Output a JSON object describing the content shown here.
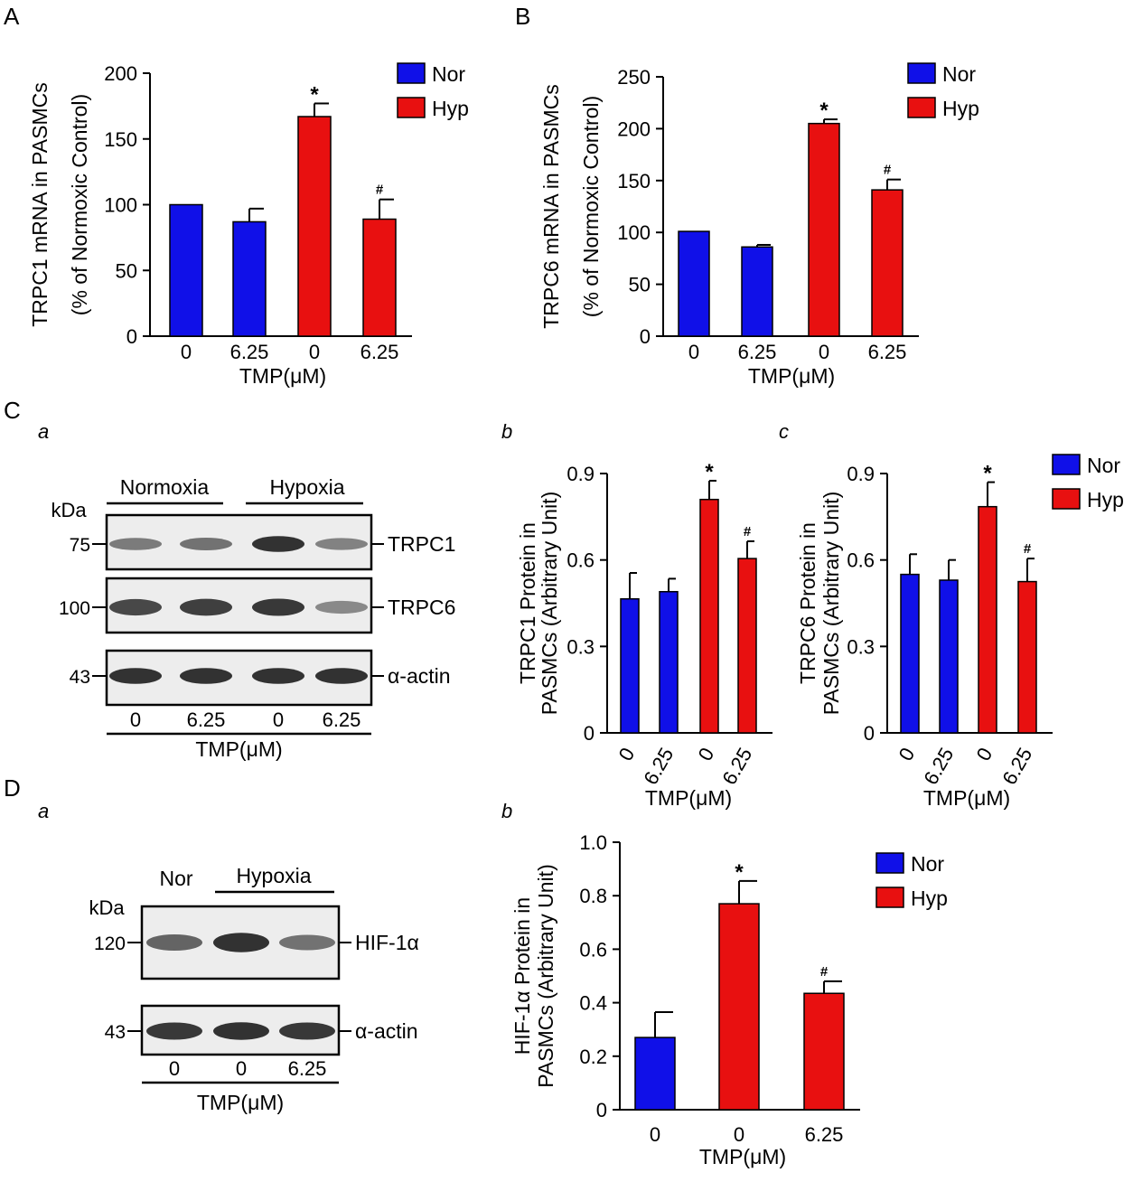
{
  "colors": {
    "nor": "#1010E8",
    "hyp": "#E81010",
    "axis": "#000000",
    "blot_bg": "#EDEDED",
    "band": "#2A2A2A"
  },
  "panel_labels": {
    "A": "A",
    "B": "B",
    "C": "C",
    "D": "D",
    "Ca": "a",
    "Cb": "b",
    "Cc": "c",
    "Da": "a",
    "Db": "b"
  },
  "legend": {
    "nor": "Nor",
    "hyp": "Hyp"
  },
  "blots": {
    "C": {
      "groups": [
        "Normoxia",
        "Hypoxia"
      ],
      "kda_label": "kDa",
      "markers": [
        "75",
        "100",
        "43"
      ],
      "proteins": [
        "TRPC1",
        "TRPC6",
        "α-actin"
      ],
      "lanes": [
        "0",
        "6.25",
        "0",
        "6.25"
      ],
      "xlabel": "TMP(μM)",
      "band_intensity": [
        [
          0.45,
          0.5,
          0.95,
          0.4
        ],
        [
          0.8,
          0.85,
          0.9,
          0.35
        ],
        [
          0.95,
          0.95,
          0.95,
          0.95
        ]
      ]
    },
    "D": {
      "groups": [
        "Nor",
        "Hypoxia"
      ],
      "kda_label": "kDa",
      "markers": [
        "120",
        "43"
      ],
      "proteins": [
        "HIF-1α",
        "α-actin"
      ],
      "lanes": [
        "0",
        "0",
        "6.25"
      ],
      "xlabel": "TMP(μM)",
      "band_intensity": [
        [
          0.6,
          0.95,
          0.5
        ],
        [
          0.9,
          0.95,
          0.9
        ]
      ]
    }
  },
  "chart_data": [
    {
      "id": "A",
      "type": "bar",
      "ylabel": [
        "TRPC1 mRNA in PASMCs",
        "(% of Normoxic Control)"
      ],
      "xlabel": "TMP(μM)",
      "categories": [
        "0",
        "6.25",
        "0",
        "6.25"
      ],
      "groups": [
        "Nor",
        "Nor",
        "Hyp",
        "Hyp"
      ],
      "values": [
        100,
        87,
        167,
        89
      ],
      "errors": [
        0,
        10,
        10,
        15
      ],
      "marks": [
        "",
        "",
        "*",
        "#"
      ],
      "ylim": [
        0,
        200
      ],
      "yticks": [
        "0",
        "50",
        "100",
        "150",
        "200"
      ],
      "legend": "top-right"
    },
    {
      "id": "B",
      "type": "bar",
      "ylabel": [
        "TRPC6 mRNA in PASMCs",
        "(% of Normoxic Control)"
      ],
      "xlabel": "TMP(μM)",
      "categories": [
        "0",
        "6.25",
        "0",
        "6.25"
      ],
      "groups": [
        "Nor",
        "Nor",
        "Hyp",
        "Hyp"
      ],
      "values": [
        101,
        86,
        205,
        141
      ],
      "errors": [
        0,
        2,
        4,
        10
      ],
      "marks": [
        "",
        "",
        "*",
        "#"
      ],
      "ylim": [
        0,
        250
      ],
      "yticks": [
        "0",
        "50",
        "100",
        "150",
        "200",
        "250"
      ],
      "legend": "top-right"
    },
    {
      "id": "Cb",
      "type": "bar",
      "ylabel": [
        "TRPC1 Protein in",
        "PASMCs (Arbitrary Unit)"
      ],
      "xlabel": "TMP(μM)",
      "categories": [
        "0",
        "6.25",
        "0",
        "6.25"
      ],
      "groups": [
        "Nor",
        "Nor",
        "Hyp",
        "Hyp"
      ],
      "values": [
        0.465,
        0.49,
        0.81,
        0.605
      ],
      "errors": [
        0.09,
        0.045,
        0.065,
        0.06
      ],
      "marks": [
        "",
        "",
        "*",
        "#"
      ],
      "ylim": [
        0,
        0.9
      ],
      "yticks": [
        "0",
        "0.3",
        "0.6",
        "0.9"
      ],
      "rotated_ticks": true
    },
    {
      "id": "Cc",
      "type": "bar",
      "ylabel": [
        "TRPC6 Protein in",
        "PASMCs (Arbitrary Unit)"
      ],
      "xlabel": "TMP(μM)",
      "categories": [
        "0",
        "6.25",
        "0",
        "6.25"
      ],
      "groups": [
        "Nor",
        "Nor",
        "Hyp",
        "Hyp"
      ],
      "values": [
        0.55,
        0.53,
        0.785,
        0.525
      ],
      "errors": [
        0.07,
        0.07,
        0.085,
        0.08
      ],
      "marks": [
        "",
        "",
        "*",
        "#"
      ],
      "ylim": [
        0,
        0.9
      ],
      "yticks": [
        "0",
        "0.3",
        "0.6",
        "0.9"
      ],
      "rotated_ticks": true,
      "legend": "right"
    },
    {
      "id": "Db",
      "type": "bar",
      "ylabel": [
        "HIF-1α Protein in",
        "PASMCs (Arbitrary Unit)"
      ],
      "xlabel": "TMP(μM)",
      "categories": [
        "0",
        "0",
        "6.25"
      ],
      "groups": [
        "Nor",
        "Hyp",
        "Hyp"
      ],
      "values": [
        0.27,
        0.77,
        0.435
      ],
      "errors": [
        0.095,
        0.085,
        0.045
      ],
      "marks": [
        "",
        "*",
        "#"
      ],
      "ylim": [
        0,
        1.0
      ],
      "yticks": [
        "0",
        "0.2",
        "0.4",
        "0.6",
        "0.8",
        "1.0"
      ],
      "legend": "top-right"
    }
  ]
}
